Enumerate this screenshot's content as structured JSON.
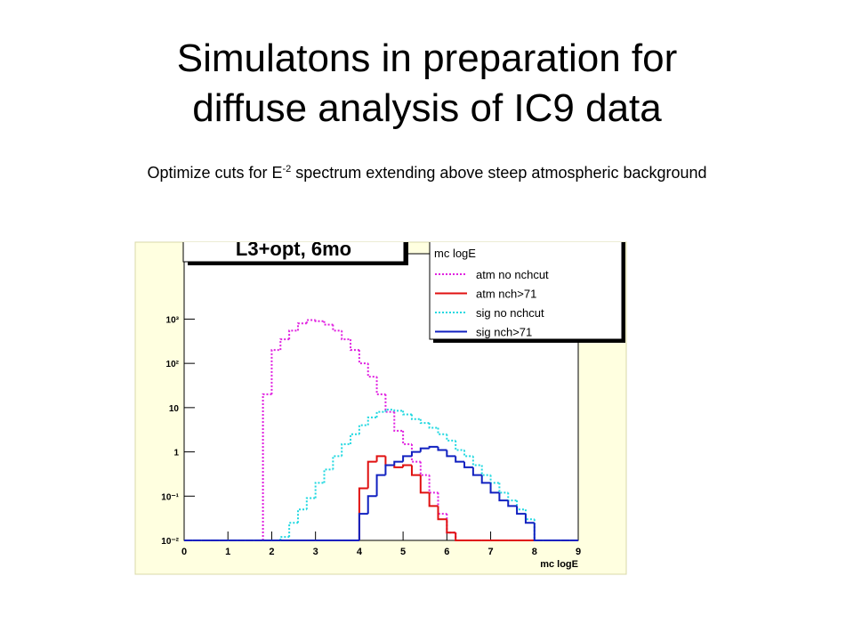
{
  "slide": {
    "title": [
      "Simulatons in preparation for",
      "diffuse analysis of IC9 data"
    ],
    "subtitle": [
      "Optimize cuts for E",
      "-2",
      " spectrum extending above steep atmospheric background"
    ]
  },
  "chart_data": {
    "type": "histogram",
    "title": "L3+opt, 6mo",
    "legend_title": "mc logE",
    "xlabel": "mc logE",
    "log_y": true,
    "legend": "top-right",
    "xlim": [
      0,
      9
    ],
    "xticks": [
      0,
      1,
      2,
      3,
      4,
      5,
      6,
      7,
      8,
      9
    ],
    "ylim": [
      0.01,
      30000
    ],
    "yticks": [
      {
        "value": 0.01,
        "label": "10⁻²"
      },
      {
        "value": 0.1,
        "label": "10⁻¹"
      },
      1,
      10,
      {
        "value": 100,
        "label": "10²"
      },
      {
        "value": 1000,
        "label": "10³"
      }
    ],
    "bins": [
      0,
      0.2,
      0.4,
      0.6,
      0.8,
      1,
      1.2,
      1.4,
      1.6,
      1.8,
      2,
      2.2,
      2.4,
      2.6,
      2.8,
      3,
      3.2,
      3.4,
      3.6,
      3.8,
      4,
      4.2,
      4.4,
      4.6,
      4.8,
      5,
      5.2,
      5.4,
      5.6,
      5.8,
      6,
      6.2,
      6.4,
      6.6,
      6.8,
      7,
      7.2,
      7.4,
      7.6,
      7.8,
      8,
      8.2,
      8.4,
      8.6,
      8.8,
      9
    ],
    "series": [
      {
        "name": "atm no nchcut",
        "color": "#e020e0",
        "style": "dotted",
        "values": [
          0,
          0,
          0,
          0,
          0,
          0,
          0,
          0,
          0,
          20,
          200,
          350,
          550,
          800,
          950,
          900,
          750,
          550,
          350,
          200,
          100,
          50,
          20,
          8,
          3,
          1.5,
          0.6,
          0.3,
          0.12,
          0.04,
          0.015,
          0,
          0,
          0,
          0,
          0,
          0,
          0,
          0,
          0,
          0,
          0,
          0,
          0,
          0
        ]
      },
      {
        "name": "atm nch>71",
        "color": "#e01010",
        "style": "solid",
        "values": [
          0,
          0,
          0,
          0,
          0,
          0,
          0,
          0,
          0,
          0,
          0,
          0,
          0,
          0,
          0,
          0,
          0,
          0,
          0,
          0,
          0.15,
          0.6,
          0.8,
          0.5,
          0.45,
          0.5,
          0.3,
          0.12,
          0.06,
          0.03,
          0.015,
          0,
          0,
          0,
          0,
          0,
          0,
          0,
          0,
          0,
          0,
          0,
          0,
          0,
          0
        ]
      },
      {
        "name": "sig no nchcut",
        "color": "#20d8e0",
        "style": "dotted",
        "values": [
          0,
          0,
          0,
          0,
          0,
          0,
          0,
          0,
          0,
          0,
          0,
          0.012,
          0.025,
          0.05,
          0.09,
          0.2,
          0.4,
          0.8,
          1.5,
          2.5,
          4,
          6,
          8,
          9,
          8.5,
          7,
          5.5,
          4.5,
          3.5,
          2.5,
          1.8,
          1.1,
          0.8,
          0.5,
          0.3,
          0.2,
          0.12,
          0.08,
          0.05,
          0.03,
          0,
          0,
          0,
          0,
          0
        ]
      },
      {
        "name": "sig nch>71",
        "color": "#1020c0",
        "style": "solid",
        "values": [
          0,
          0,
          0,
          0,
          0,
          0,
          0,
          0,
          0,
          0,
          0,
          0,
          0,
          0,
          0,
          0,
          0,
          0,
          0,
          0,
          0.04,
          0.1,
          0.3,
          0.5,
          0.6,
          0.8,
          1.0,
          1.2,
          1.3,
          1.1,
          0.8,
          0.6,
          0.45,
          0.3,
          0.2,
          0.12,
          0.08,
          0.06,
          0.04,
          0.025,
          0,
          0,
          0,
          0,
          0
        ]
      }
    ]
  }
}
